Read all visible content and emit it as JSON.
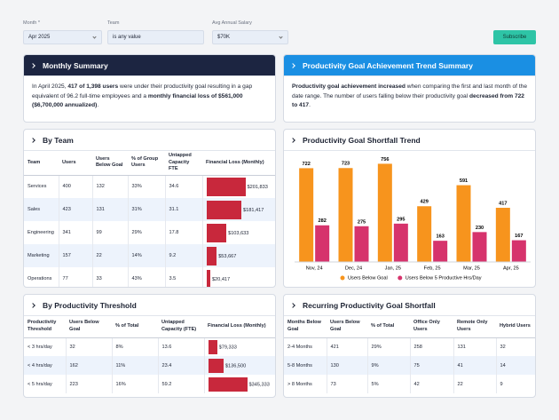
{
  "filters": [
    {
      "label": "Month *",
      "value": "Apr 2025"
    },
    {
      "label": "Team",
      "value": "is any value"
    },
    {
      "label": "Avg Annual Salary",
      "value": "$70K"
    }
  ],
  "subscribe": "Subscribe",
  "monthly_summary": {
    "title": "Monthly Summary",
    "segments": [
      {
        "text": "In April 2025, "
      },
      {
        "text": "417 of 1,398 users",
        "bold": true
      },
      {
        "text": " were under their productivity goal resulting in a gap equivalent of 96.2 full-time employees and a "
      },
      {
        "text": "monthly financial loss of $561,000 ($6,700,000 annualized)",
        "bold": true
      },
      {
        "text": "."
      }
    ]
  },
  "trend_summary": {
    "title": "Productivity Goal Achievement Trend Summary",
    "segments": [
      {
        "text": "Productivity goal achievement increased",
        "bold": true
      },
      {
        "text": " when comparing the first and last month of the date range. The number of users falling below their productivity goal "
      },
      {
        "text": "decreased from 722 to 417",
        "bold": true
      },
      {
        "text": "."
      }
    ]
  },
  "by_team": {
    "title": "By Team",
    "headers": [
      "Team",
      "Users",
      "Users Below Goal",
      "% of Group Users",
      "Untapped Capacity FTE",
      "Financial Loss (Monthly)"
    ],
    "bar_color": "#c8283c",
    "rows": [
      [
        "Services",
        "400",
        "132",
        "33%",
        "34.6",
        {
          "value": 201833,
          "label": "$201,833"
        }
      ],
      [
        "Sales",
        "423",
        "131",
        "31%",
        "31.1",
        {
          "value": 181417,
          "label": "$181,417"
        }
      ],
      [
        "Engineering",
        "341",
        "99",
        "29%",
        "17.8",
        {
          "value": 103633,
          "label": "$103,633"
        }
      ],
      [
        "Marketing",
        "157",
        "22",
        "14%",
        "9.2",
        {
          "value": 53667,
          "label": "$53,667"
        }
      ],
      [
        "Operations",
        "77",
        "33",
        "43%",
        "3.5",
        {
          "value": 20417,
          "label": "$20,417"
        }
      ]
    ]
  },
  "chart_data": {
    "type": "bar",
    "title": "Productivity Goal Shortfall Trend",
    "categories": [
      "Nov, 24",
      "Dec, 24",
      "Jan, 25",
      "Feb, 25",
      "Mar, 25",
      "Apr, 25"
    ],
    "series": [
      {
        "name": "Users Below Goal",
        "color": "#f7941d",
        "values": [
          722,
          723,
          756,
          429,
          591,
          417
        ]
      },
      {
        "name": "Users Below 5 Productive Hrs/Day",
        "color": "#d6336c",
        "values": [
          282,
          275,
          295,
          163,
          230,
          167
        ]
      }
    ],
    "ylim": [
      0,
      800
    ],
    "grid": false
  },
  "by_threshold": {
    "title": "By Productivity Threshold",
    "headers": [
      "Productivity Threshold",
      "Users Below Goal",
      "% of Total",
      "Untapped Capacity (FTE)",
      "Financial Loss (Monthly)"
    ],
    "bar_color": "#c8283c",
    "rows": [
      [
        "< 3 hrs/day",
        "32",
        "8%",
        "13.6",
        {
          "value": 79333,
          "label": "$79,333"
        }
      ],
      [
        "< 4 hrs/day",
        "162",
        "11%",
        "23.4",
        {
          "value": 136500,
          "label": "$136,500"
        }
      ],
      [
        "< 5 hrs/day",
        "223",
        "16%",
        "59.2",
        {
          "value": 345333,
          "label": "$345,333"
        }
      ]
    ]
  },
  "recurring": {
    "title": "Recurring Productivity Goal Shortfall",
    "headers": [
      "Months Below Goal",
      "Users Below Goal",
      "% of Total",
      "Office Only Users",
      "Remote Only Users",
      "Hybrid Users"
    ],
    "rows": [
      [
        "2-4 Months",
        "421",
        "29%",
        "258",
        "131",
        "32"
      ],
      [
        "5-8 Months",
        "130",
        "9%",
        "75",
        "41",
        "14"
      ],
      [
        "> 8 Months",
        "73",
        "5%",
        "42",
        "22",
        "9"
      ]
    ]
  }
}
